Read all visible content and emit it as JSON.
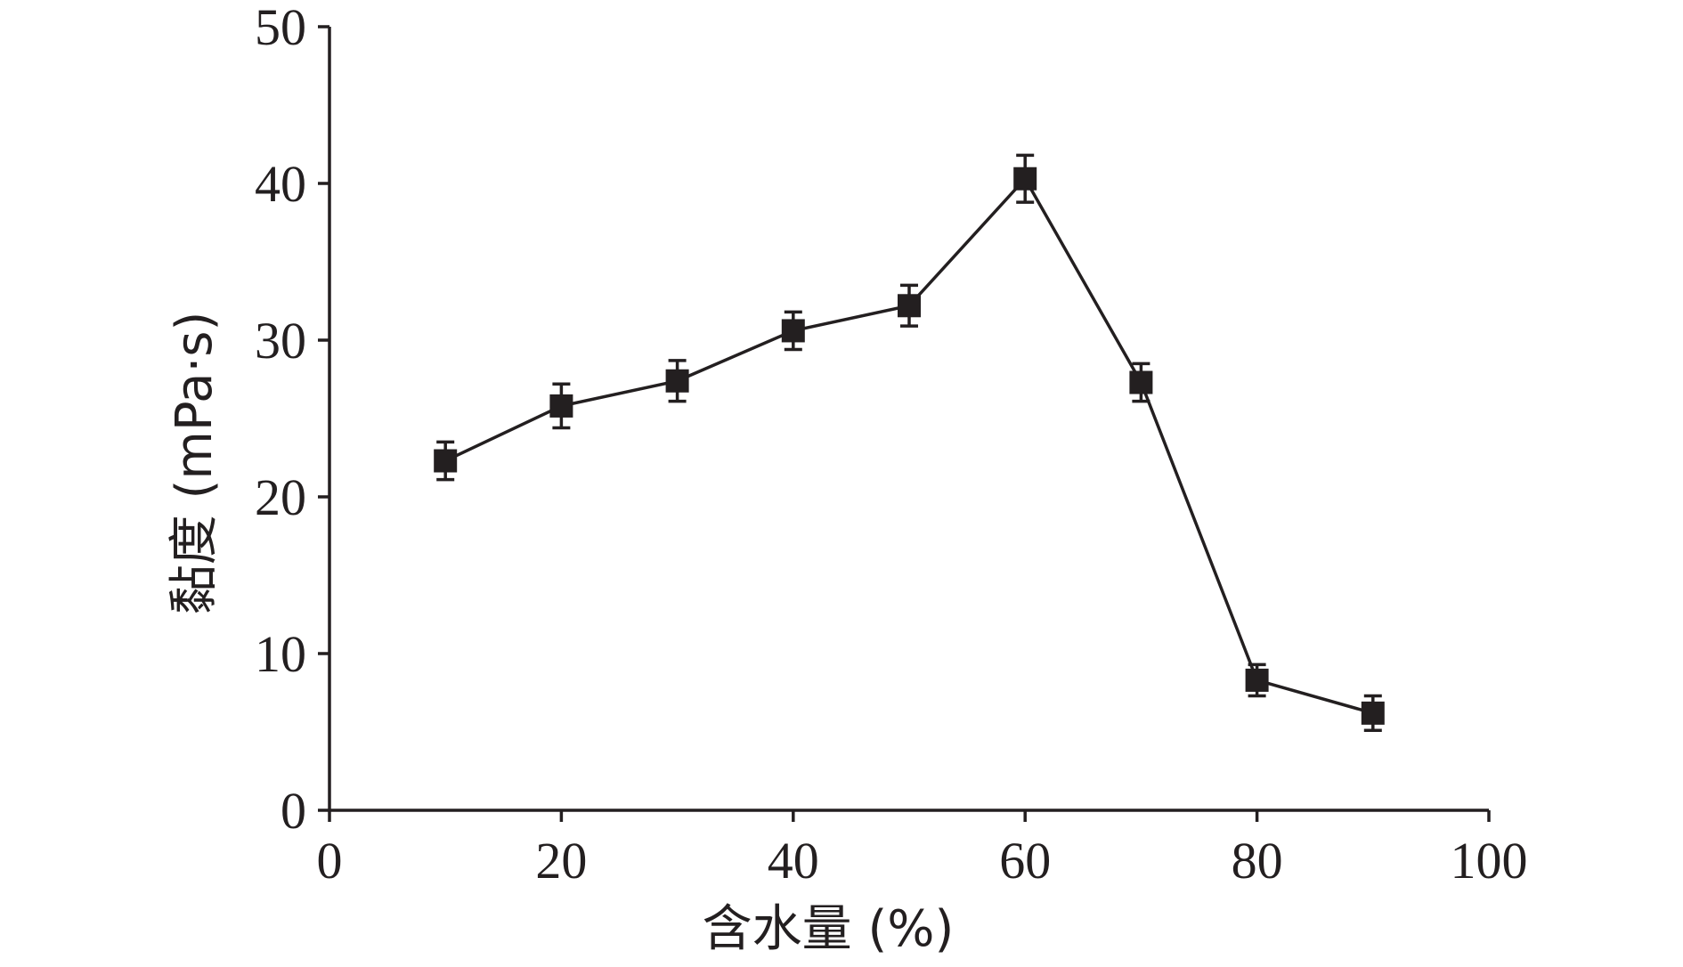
{
  "chart_data": {
    "type": "line",
    "xlabel": "含水量 (%)",
    "ylabel": "黏度 (mPa·s)",
    "xlim": [
      0,
      100
    ],
    "ylim": [
      0,
      50
    ],
    "xticks": [
      "0",
      "20",
      "40",
      "60",
      "80",
      "100"
    ],
    "yticks": [
      "0",
      "10",
      "20",
      "30",
      "40",
      "50"
    ],
    "grid": false,
    "marker": "square",
    "color": "#231f20",
    "series": [
      {
        "x": [
          10,
          20,
          30,
          40,
          50,
          60,
          70,
          80,
          90
        ],
        "y": [
          22.3,
          25.8,
          27.4,
          30.6,
          32.2,
          40.3,
          27.3,
          8.3,
          6.2
        ],
        "error": [
          1.2,
          1.4,
          1.3,
          1.2,
          1.3,
          1.5,
          1.2,
          1.0,
          1.1
        ]
      }
    ]
  }
}
